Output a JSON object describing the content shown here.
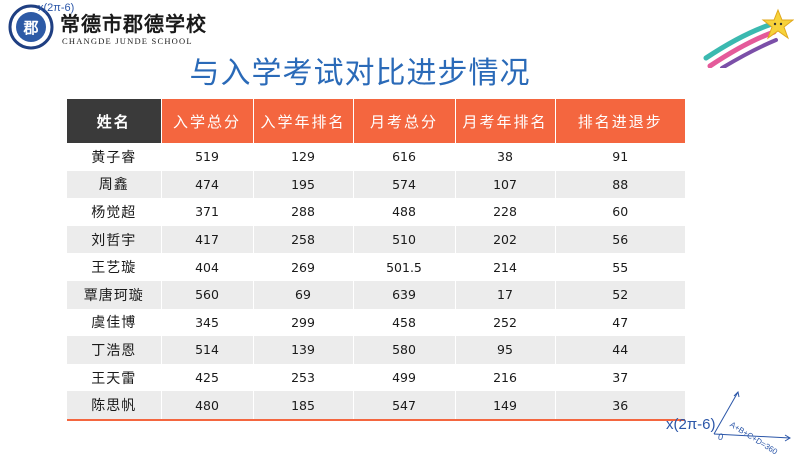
{
  "logo": {
    "formula": "x(2π-6)",
    "name_cn": "常德市郡德学校",
    "name_en": "CHANGDE JUNDE SCHOOL",
    "emblem_mark": "郡"
  },
  "title": "与入学考试对比进步情况",
  "colors": {
    "title": "#2a6ab8",
    "header_dark": "#3a3a3a",
    "header_orange": "#f4663f",
    "row_stripe": "#ececec",
    "formula_blue": "#2b56a8"
  },
  "table": {
    "headers": [
      "姓名",
      "入学总分",
      "入学年排名",
      "月考总分",
      "月考年排名",
      "排名进退步"
    ],
    "rows": [
      [
        "黄子睿",
        "519",
        "129",
        "616",
        "38",
        "91"
      ],
      [
        "周鑫",
        "474",
        "195",
        "574",
        "107",
        "88"
      ],
      [
        "杨觉超",
        "371",
        "288",
        "488",
        "228",
        "60"
      ],
      [
        "刘哲宇",
        "417",
        "258",
        "510",
        "202",
        "56"
      ],
      [
        "王艺璇",
        "404",
        "269",
        "501.5",
        "214",
        "55"
      ],
      [
        "覃唐珂璇",
        "560",
        "69",
        "639",
        "17",
        "52"
      ],
      [
        "虞佳博",
        "345",
        "299",
        "458",
        "252",
        "47"
      ],
      [
        "丁浩恩",
        "514",
        "139",
        "580",
        "95",
        "44"
      ],
      [
        "王天雷",
        "425",
        "253",
        "499",
        "216",
        "37"
      ],
      [
        "陈思帆",
        "480",
        "185",
        "547",
        "149",
        "36"
      ]
    ]
  },
  "corner": {
    "formula": "x(2π-6)",
    "equation": "A+B+C+D=360",
    "origin": "0"
  },
  "icons": {
    "logo": "school-emblem-icon",
    "decoration": "shooting-star-icon",
    "geometry": "geometry-angle-icon"
  }
}
